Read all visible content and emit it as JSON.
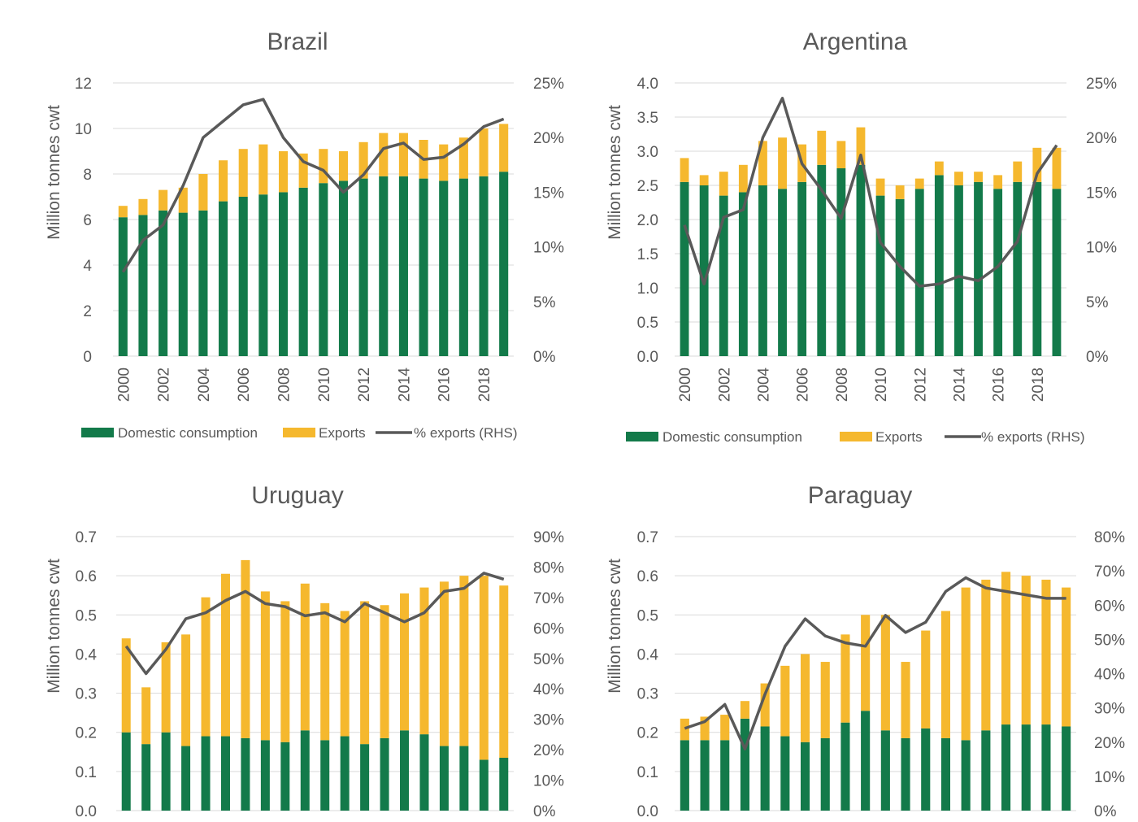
{
  "colors": {
    "domestic": "#137a4a",
    "exports": "#f5b82e",
    "line": "#595959",
    "grid": "#d9d9d9"
  },
  "chart_data": [
    {
      "type": "bar",
      "title": "Brazil",
      "ylabel": "Million tonnes cwt",
      "ylim": [
        0,
        12
      ],
      "yticks": [
        "0",
        "2",
        "4",
        "6",
        "8",
        "10",
        "12"
      ],
      "y2lim": [
        0,
        25
      ],
      "y2ticks": [
        "0%",
        "5%",
        "10%",
        "15%",
        "20%",
        "25%"
      ],
      "xticks": [
        "2000",
        "2002",
        "2004",
        "2006",
        "2008",
        "2010",
        "2012",
        "2014",
        "2016",
        "2018"
      ],
      "categories": [
        "2000",
        "2001",
        "2002",
        "2003",
        "2004",
        "2005",
        "2006",
        "2007",
        "2008",
        "2009",
        "2010",
        "2011",
        "2012",
        "2013",
        "2014",
        "2015",
        "2016",
        "2017",
        "2018",
        "2019"
      ],
      "stacked": true,
      "series": [
        {
          "name": "Domestic consumption",
          "values": [
            6.1,
            6.2,
            6.4,
            6.3,
            6.4,
            6.8,
            7.0,
            7.1,
            7.2,
            7.4,
            7.6,
            7.7,
            7.8,
            7.9,
            7.9,
            7.8,
            7.7,
            7.8,
            7.9,
            8.1
          ]
        },
        {
          "name": "Exports",
          "values": [
            0.5,
            0.7,
            0.9,
            1.1,
            1.6,
            1.8,
            2.1,
            2.2,
            1.8,
            1.5,
            1.5,
            1.3,
            1.6,
            1.9,
            1.9,
            1.7,
            1.6,
            1.8,
            2.1,
            2.1
          ]
        },
        {
          "name": "% exports (RHS)",
          "axis": "right",
          "values": [
            7.7,
            10.6,
            12.0,
            15.6,
            20.0,
            21.5,
            23.0,
            23.5,
            20.0,
            17.8,
            17.0,
            15.0,
            16.6,
            19.0,
            19.5,
            18.0,
            18.2,
            19.4,
            21.0,
            21.7
          ]
        }
      ],
      "legend": [
        "Domestic consumption",
        "Exports",
        "% exports (RHS)"
      ],
      "legend_position": "bottom",
      "grid": true
    },
    {
      "type": "bar",
      "title": "Argentina",
      "ylabel": "Million tonnes cwt",
      "ylim": [
        0,
        4
      ],
      "yticks": [
        "0.0",
        "0.5",
        "1.0",
        "1.5",
        "2.0",
        "2.5",
        "3.0",
        "3.5",
        "4.0"
      ],
      "y2lim": [
        0,
        25
      ],
      "y2ticks": [
        "0%",
        "5%",
        "10%",
        "15%",
        "20%",
        "25%"
      ],
      "xticks": [
        "2000",
        "2002",
        "2004",
        "2006",
        "2008",
        "2010",
        "2012",
        "2014",
        "2016",
        "2018"
      ],
      "categories": [
        "2000",
        "2001",
        "2002",
        "2003",
        "2004",
        "2005",
        "2006",
        "2007",
        "2008",
        "2009",
        "2010",
        "2011",
        "2012",
        "2013",
        "2014",
        "2015",
        "2016",
        "2017",
        "2018",
        "2019"
      ],
      "stacked": true,
      "series": [
        {
          "name": "Domestic consumption",
          "values": [
            2.55,
            2.5,
            2.35,
            2.4,
            2.5,
            2.45,
            2.55,
            2.8,
            2.75,
            2.8,
            2.35,
            2.3,
            2.45,
            2.65,
            2.5,
            2.55,
            2.45,
            2.55,
            2.55,
            2.45
          ]
        },
        {
          "name": "Exports",
          "values": [
            0.35,
            0.15,
            0.35,
            0.4,
            0.65,
            0.75,
            0.55,
            0.5,
            0.4,
            0.55,
            0.25,
            0.2,
            0.15,
            0.2,
            0.2,
            0.15,
            0.2,
            0.3,
            0.5,
            0.6
          ]
        },
        {
          "name": "% exports (RHS)",
          "axis": "right",
          "values": [
            12.0,
            6.6,
            12.7,
            13.4,
            20.0,
            23.6,
            17.6,
            15.2,
            12.6,
            18.4,
            10.4,
            8.2,
            6.4,
            6.6,
            7.3,
            6.9,
            8.2,
            10.5,
            16.7,
            19.3
          ]
        }
      ],
      "legend": [
        "Domestic consumption",
        "Exports",
        "% exports (RHS)"
      ],
      "legend_position": "bottom",
      "grid": true
    },
    {
      "type": "bar",
      "title": "Uruguay",
      "ylabel": "Million tonnes cwt",
      "ylim": [
        0,
        0.7
      ],
      "yticks": [
        "0.0",
        "0.1",
        "0.2",
        "0.3",
        "0.4",
        "0.5",
        "0.6",
        "0.7"
      ],
      "y2lim": [
        0,
        90
      ],
      "y2ticks": [
        "0%",
        "10%",
        "20%",
        "30%",
        "40%",
        "50%",
        "60%",
        "70%",
        "80%",
        "90%"
      ],
      "categories": [
        "2000",
        "2001",
        "2002",
        "2003",
        "2004",
        "2005",
        "2006",
        "2007",
        "2008",
        "2009",
        "2010",
        "2011",
        "2012",
        "2013",
        "2014",
        "2015",
        "2016",
        "2017",
        "2018",
        "2019"
      ],
      "stacked": true,
      "series": [
        {
          "name": "Domestic consumption",
          "values": [
            0.2,
            0.17,
            0.2,
            0.165,
            0.19,
            0.19,
            0.185,
            0.18,
            0.175,
            0.205,
            0.18,
            0.19,
            0.17,
            0.185,
            0.205,
            0.195,
            0.165,
            0.165,
            0.13,
            0.135
          ]
        },
        {
          "name": "Exports",
          "values": [
            0.24,
            0.145,
            0.23,
            0.285,
            0.355,
            0.415,
            0.455,
            0.38,
            0.36,
            0.375,
            0.35,
            0.32,
            0.365,
            0.34,
            0.35,
            0.375,
            0.42,
            0.435,
            0.47,
            0.44
          ]
        },
        {
          "name": "% exports (RHS)",
          "axis": "right",
          "values": [
            54,
            45,
            53,
            63,
            65,
            69,
            72,
            68,
            67,
            64,
            65,
            62,
            68,
            65,
            62,
            65,
            72,
            73,
            78,
            76
          ]
        }
      ],
      "grid": true
    },
    {
      "type": "bar",
      "title": "Paraguay",
      "ylabel": "Million tonnes cwt",
      "ylim": [
        0,
        0.7
      ],
      "yticks": [
        "0.0",
        "0.1",
        "0.2",
        "0.3",
        "0.4",
        "0.5",
        "0.6",
        "0.7"
      ],
      "y2lim": [
        0,
        80
      ],
      "y2ticks": [
        "0%",
        "10%",
        "20%",
        "30%",
        "40%",
        "50%",
        "60%",
        "70%",
        "80%"
      ],
      "categories": [
        "2000",
        "2001",
        "2002",
        "2003",
        "2004",
        "2005",
        "2006",
        "2007",
        "2008",
        "2009",
        "2010",
        "2011",
        "2012",
        "2013",
        "2014",
        "2015",
        "2016",
        "2017",
        "2018",
        "2019"
      ],
      "stacked": true,
      "series": [
        {
          "name": "Domestic consumption",
          "values": [
            0.18,
            0.18,
            0.18,
            0.235,
            0.215,
            0.19,
            0.175,
            0.185,
            0.225,
            0.255,
            0.205,
            0.185,
            0.21,
            0.185,
            0.18,
            0.205,
            0.22,
            0.22,
            0.22,
            0.215
          ]
        },
        {
          "name": "Exports",
          "values": [
            0.055,
            0.06,
            0.065,
            0.045,
            0.11,
            0.18,
            0.225,
            0.195,
            0.225,
            0.245,
            0.295,
            0.195,
            0.25,
            0.325,
            0.39,
            0.385,
            0.39,
            0.38,
            0.37,
            0.355
          ]
        },
        {
          "name": "% exports (RHS)",
          "axis": "right",
          "values": [
            24,
            26,
            31,
            18,
            34,
            48,
            56,
            51,
            49,
            48,
            57,
            52,
            55,
            64,
            68,
            65,
            64,
            63,
            62,
            62
          ]
        }
      ],
      "grid": true
    }
  ]
}
